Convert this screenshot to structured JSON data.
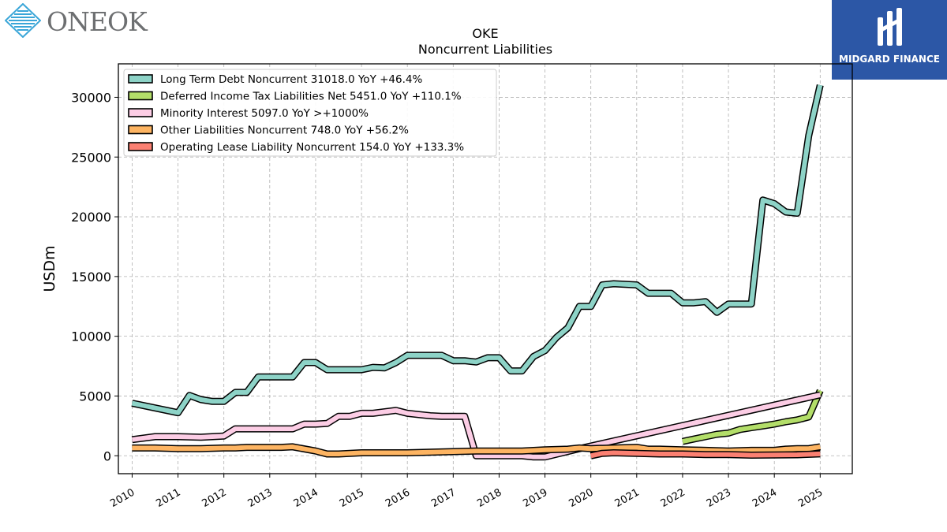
{
  "branding": {
    "company_logo_text": "ONEOK",
    "watermark_text": "MIDGARD FINANCE",
    "watermark_bg": "#2c57a6"
  },
  "chart_data": {
    "type": "line",
    "title": "OKE",
    "subtitle": "Noncurrent  Liabilities",
    "ylabel": "USDm",
    "xlabel": "",
    "xlim": [
      2009.7,
      2025.7
    ],
    "ylim": [
      -1500,
      32800
    ],
    "x_ticks": [
      2010,
      2011,
      2012,
      2013,
      2014,
      2015,
      2016,
      2017,
      2018,
      2019,
      2020,
      2021,
      2022,
      2023,
      2024,
      2025
    ],
    "x_tick_labels": [
      "2010",
      "2011",
      "2012",
      "2013",
      "2014",
      "2015",
      "2016",
      "2017",
      "2018",
      "2019",
      "2020",
      "2021",
      "2022",
      "2023",
      "2024",
      "2025"
    ],
    "y_ticks": [
      0,
      5000,
      10000,
      15000,
      20000,
      25000,
      30000
    ],
    "y_tick_labels": [
      "0",
      "5000",
      "10000",
      "15000",
      "20000",
      "25000",
      "30000"
    ],
    "grid": true,
    "legend_position": "top-left",
    "series": [
      {
        "name": "Long Term Debt Noncurrent",
        "legend_label": "Long Term Debt Noncurrent  31018.0 YoY +46.4%",
        "color": "#8dd3c7",
        "points": [
          [
            2010.0,
            4400
          ],
          [
            2011.0,
            3600
          ],
          [
            2011.25,
            5050
          ],
          [
            2011.5,
            4700
          ],
          [
            2011.75,
            4550
          ],
          [
            2012.0,
            4550
          ],
          [
            2012.25,
            5300
          ],
          [
            2012.5,
            5300
          ],
          [
            2012.75,
            6600
          ],
          [
            2013.0,
            6600
          ],
          [
            2013.25,
            6600
          ],
          [
            2013.5,
            6600
          ],
          [
            2013.75,
            7800
          ],
          [
            2014.0,
            7800
          ],
          [
            2014.25,
            7200
          ],
          [
            2014.5,
            7200
          ],
          [
            2014.75,
            7200
          ],
          [
            2015.0,
            7200
          ],
          [
            2015.25,
            7400
          ],
          [
            2015.5,
            7350
          ],
          [
            2015.75,
            7800
          ],
          [
            2016.0,
            8400
          ],
          [
            2016.25,
            8400
          ],
          [
            2016.5,
            8400
          ],
          [
            2016.75,
            8400
          ],
          [
            2017.0,
            7950
          ],
          [
            2017.25,
            7950
          ],
          [
            2017.5,
            7850
          ],
          [
            2017.75,
            8200
          ],
          [
            2018.0,
            8200
          ],
          [
            2018.25,
            7100
          ],
          [
            2018.5,
            7100
          ],
          [
            2018.75,
            8300
          ],
          [
            2019.0,
            8800
          ],
          [
            2019.25,
            9900
          ],
          [
            2019.5,
            10700
          ],
          [
            2019.75,
            12500
          ],
          [
            2020.0,
            12500
          ],
          [
            2020.25,
            14300
          ],
          [
            2020.5,
            14400
          ],
          [
            2020.75,
            14350
          ],
          [
            2021.0,
            14300
          ],
          [
            2021.25,
            13600
          ],
          [
            2021.5,
            13600
          ],
          [
            2021.75,
            13600
          ],
          [
            2022.0,
            12800
          ],
          [
            2022.25,
            12800
          ],
          [
            2022.5,
            12900
          ],
          [
            2022.75,
            12000
          ],
          [
            2023.0,
            12700
          ],
          [
            2023.25,
            12700
          ],
          [
            2023.5,
            12700
          ],
          [
            2023.75,
            21400
          ],
          [
            2024.0,
            21100
          ],
          [
            2024.25,
            20400
          ],
          [
            2024.5,
            20300
          ],
          [
            2024.75,
            26800
          ],
          [
            2025.0,
            31018
          ]
        ]
      },
      {
        "name": "Deferred Income Tax Liabilities Net",
        "legend_label": "Deferred Income Tax Liabilities Net  5451.0 YoY +110.1%",
        "color": "#b3de69",
        "points": [
          [
            2022.0,
            1200
          ],
          [
            2022.25,
            1400
          ],
          [
            2022.5,
            1600
          ],
          [
            2022.75,
            1800
          ],
          [
            2023.0,
            1900
          ],
          [
            2023.25,
            2200
          ],
          [
            2023.5,
            2350
          ],
          [
            2023.75,
            2500
          ],
          [
            2024.0,
            2650
          ],
          [
            2024.25,
            2850
          ],
          [
            2024.5,
            3000
          ],
          [
            2024.75,
            3250
          ],
          [
            2025.0,
            5451
          ]
        ]
      },
      {
        "name": "Minority Interest",
        "legend_label": "Minority Interest  5097.0 YoY >+1000%",
        "color": "#fccde5",
        "points": [
          [
            2010.0,
            1350
          ],
          [
            2010.5,
            1600
          ],
          [
            2011.0,
            1600
          ],
          [
            2011.5,
            1550
          ],
          [
            2012.0,
            1650
          ],
          [
            2012.25,
            2250
          ],
          [
            2012.75,
            2250
          ],
          [
            2013.0,
            2250
          ],
          [
            2013.5,
            2250
          ],
          [
            2013.75,
            2650
          ],
          [
            2014.0,
            2650
          ],
          [
            2014.25,
            2700
          ],
          [
            2014.5,
            3300
          ],
          [
            2014.75,
            3300
          ],
          [
            2015.0,
            3550
          ],
          [
            2015.25,
            3550
          ],
          [
            2015.75,
            3800
          ],
          [
            2016.0,
            3550
          ],
          [
            2016.25,
            3450
          ],
          [
            2016.5,
            3350
          ],
          [
            2016.75,
            3300
          ],
          [
            2017.0,
            3300
          ],
          [
            2017.25,
            3300
          ],
          [
            2017.5,
            0
          ],
          [
            2018.0,
            0
          ],
          [
            2018.5,
            0
          ],
          [
            2018.75,
            -100
          ],
          [
            2019.0,
            -100
          ],
          [
            2019.75,
            600
          ],
          [
            2025.0,
            5097
          ]
        ]
      },
      {
        "name": "Other Liabilities Noncurrent",
        "legend_label": "Other Liabilities Noncurrent  748.0 YoY +56.2%",
        "color": "#fdb462",
        "points": [
          [
            2010.0,
            650
          ],
          [
            2010.5,
            650
          ],
          [
            2011.0,
            600
          ],
          [
            2011.5,
            600
          ],
          [
            2012.0,
            650
          ],
          [
            2012.25,
            650
          ],
          [
            2012.5,
            700
          ],
          [
            2013.0,
            700
          ],
          [
            2013.25,
            700
          ],
          [
            2013.5,
            750
          ],
          [
            2014.0,
            400
          ],
          [
            2014.25,
            150
          ],
          [
            2014.5,
            150
          ],
          [
            2015.0,
            250
          ],
          [
            2015.5,
            250
          ],
          [
            2016.0,
            250
          ],
          [
            2016.5,
            300
          ],
          [
            2017.0,
            350
          ],
          [
            2017.5,
            400
          ],
          [
            2018.0,
            400
          ],
          [
            2018.5,
            400
          ],
          [
            2019.0,
            500
          ],
          [
            2019.5,
            550
          ],
          [
            2019.75,
            650
          ],
          [
            2020.0,
            600
          ],
          [
            2020.5,
            650
          ],
          [
            2021.0,
            700
          ],
          [
            2021.25,
            550
          ],
          [
            2021.5,
            550
          ],
          [
            2022.0,
            500
          ],
          [
            2022.5,
            450
          ],
          [
            2023.0,
            400
          ],
          [
            2023.5,
            450
          ],
          [
            2024.0,
            450
          ],
          [
            2024.25,
            550
          ],
          [
            2024.5,
            600
          ],
          [
            2024.75,
            600
          ],
          [
            2025.0,
            748
          ]
        ]
      },
      {
        "name": "Operating Lease Liability Noncurrent",
        "legend_label": "Operating Lease Liability Noncurrent  154.0 YoY +133.3%",
        "color": "#fb8072",
        "points": [
          [
            2020.0,
            0
          ],
          [
            2020.25,
            200
          ],
          [
            2020.5,
            250
          ],
          [
            2021.0,
            200
          ],
          [
            2021.5,
            150
          ],
          [
            2022.0,
            150
          ],
          [
            2022.5,
            100
          ],
          [
            2023.0,
            100
          ],
          [
            2023.5,
            50
          ],
          [
            2024.0,
            60
          ],
          [
            2024.5,
            80
          ],
          [
            2025.0,
            154
          ]
        ]
      }
    ]
  }
}
